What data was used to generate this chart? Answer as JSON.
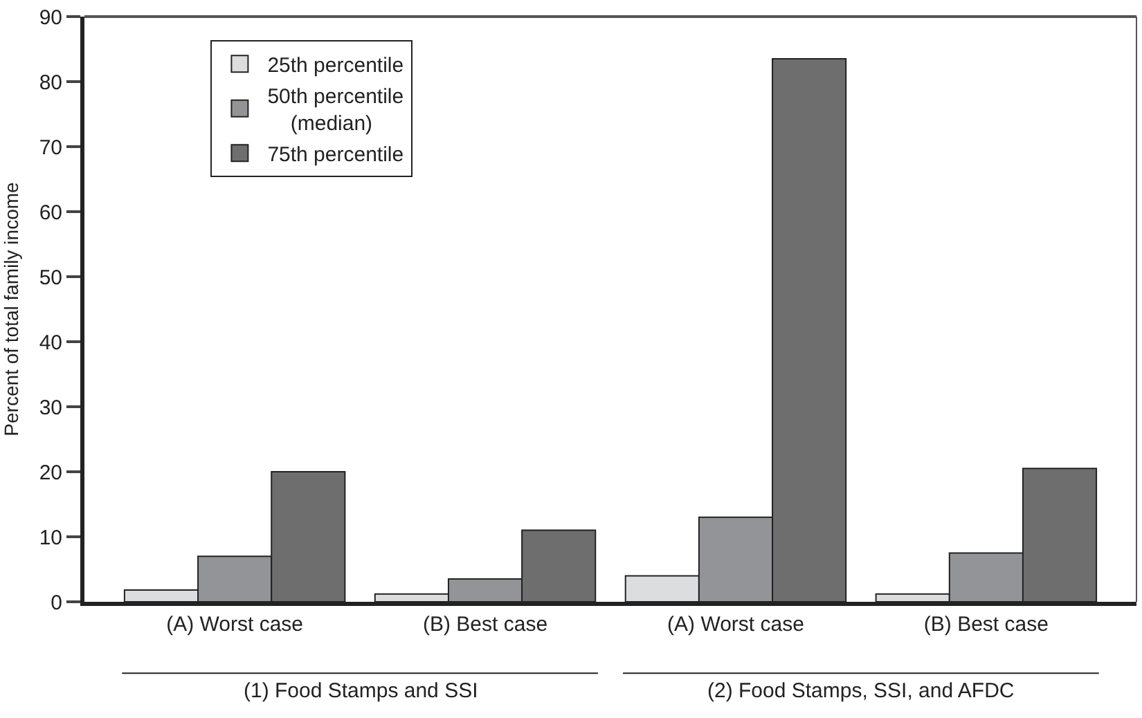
{
  "chart_data": {
    "type": "bar",
    "ylabel": "Percent of total family income",
    "categories": [
      "(A) Worst case",
      "(B) Best case",
      "(A) Worst case",
      "(B) Best case"
    ],
    "series": [
      {
        "name": "25th percentile",
        "color": "#dcdddf",
        "values": [
          1.8,
          1.2,
          4,
          1.2
        ]
      },
      {
        "name": "50th percentile (median)",
        "color": "#939497",
        "values": [
          7,
          3.5,
          13,
          7.5
        ]
      },
      {
        "name": "75th percentile",
        "color": "#6e6e6e",
        "values": [
          20,
          11,
          83.5,
          20.5
        ]
      }
    ],
    "annotations": [
      "(1) Food Stamps and SSI",
      "(2) Food Stamps, SSI, and AFDC"
    ],
    "ylim": [
      0,
      90
    ],
    "yticks": [
      0,
      10,
      20,
      30,
      40,
      50,
      60,
      70,
      80,
      90
    ],
    "legend": "top left"
  }
}
